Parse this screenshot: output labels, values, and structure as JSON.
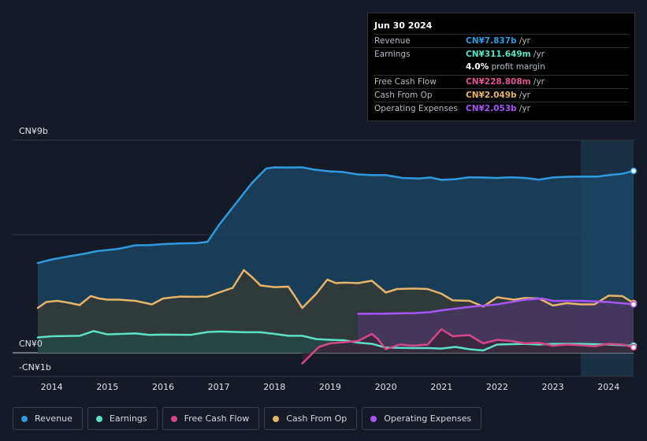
{
  "tooltip": {
    "date": "Jun 30 2024",
    "rows": [
      {
        "label": "Revenue",
        "value": "CN¥7.837b",
        "unit": " /yr",
        "color": "#2f9ae0"
      },
      {
        "label": "Earnings",
        "value": "CN¥311.649m",
        "unit": " /yr",
        "color": "#5ce0c6"
      },
      {
        "label": "",
        "value": "4.0%",
        "unit": " profit margin",
        "color": "#ffffff"
      },
      {
        "label": "Free Cash Flow",
        "value": "CN¥228.808m",
        "unit": " /yr",
        "color": "#e0558f"
      },
      {
        "label": "Cash From Op",
        "value": "CN¥2.049b",
        "unit": " /yr",
        "color": "#e8b36a"
      },
      {
        "label": "Operating Expenses",
        "value": "CN¥2.053b",
        "unit": " /yr",
        "color": "#a855f7"
      }
    ]
  },
  "legend": [
    {
      "label": "Revenue",
      "color": "#2f9ae0"
    },
    {
      "label": "Earnings",
      "color": "#5ce0c6"
    },
    {
      "label": "Free Cash Flow",
      "color": "#d6468a"
    },
    {
      "label": "Cash From Op",
      "color": "#e8b36a"
    },
    {
      "label": "Operating Expenses",
      "color": "#a855f7"
    }
  ],
  "chart_data": {
    "type": "area",
    "title": "",
    "xlabel": "",
    "ylabel": "",
    "ylim": [
      -1,
      9
    ],
    "y_ticks": [
      {
        "value": 9,
        "label": "CN¥9b"
      },
      {
        "value": 0,
        "label": "CN¥0"
      },
      {
        "value": -1,
        "label": "-CN¥1b"
      }
    ],
    "x_ticks": [
      2014,
      2015,
      2016,
      2017,
      2018,
      2019,
      2020,
      2021,
      2022,
      2023,
      2024
    ],
    "xlim": [
      2013.7,
      2024.5
    ],
    "gridlines": [
      9,
      5,
      0
    ],
    "highlight_start": 2023.5,
    "series": [
      {
        "name": "Revenue",
        "color": "#2f9ae0",
        "fill": "#1b4868",
        "points": [
          [
            2013.75,
            3.8
          ],
          [
            2014.0,
            3.95
          ],
          [
            2014.3,
            4.08
          ],
          [
            2014.6,
            4.2
          ],
          [
            2014.8,
            4.3
          ],
          [
            2015.2,
            4.4
          ],
          [
            2015.5,
            4.55
          ],
          [
            2015.75,
            4.56
          ],
          [
            2016.0,
            4.6
          ],
          [
            2016.3,
            4.63
          ],
          [
            2016.6,
            4.64
          ],
          [
            2016.8,
            4.7
          ],
          [
            2017.0,
            5.4
          ],
          [
            2017.3,
            6.3
          ],
          [
            2017.6,
            7.2
          ],
          [
            2017.85,
            7.8
          ],
          [
            2018.0,
            7.85
          ],
          [
            2018.2,
            7.84
          ],
          [
            2018.5,
            7.85
          ],
          [
            2018.7,
            7.76
          ],
          [
            2019.0,
            7.68
          ],
          [
            2019.2,
            7.66
          ],
          [
            2019.5,
            7.55
          ],
          [
            2019.75,
            7.52
          ],
          [
            2020.0,
            7.52
          ],
          [
            2020.3,
            7.4
          ],
          [
            2020.6,
            7.38
          ],
          [
            2020.8,
            7.42
          ],
          [
            2021.0,
            7.32
          ],
          [
            2021.25,
            7.35
          ],
          [
            2021.5,
            7.43
          ],
          [
            2021.75,
            7.42
          ],
          [
            2022.0,
            7.4
          ],
          [
            2022.25,
            7.43
          ],
          [
            2022.5,
            7.4
          ],
          [
            2022.75,
            7.33
          ],
          [
            2023.0,
            7.42
          ],
          [
            2023.25,
            7.45
          ],
          [
            2023.5,
            7.46
          ],
          [
            2023.8,
            7.46
          ],
          [
            2024.0,
            7.52
          ],
          [
            2024.25,
            7.58
          ],
          [
            2024.45,
            7.7
          ]
        ]
      },
      {
        "name": "Cash From Op",
        "color": "#e8b36a",
        "fill": "#3a3a32",
        "points": [
          [
            2013.75,
            1.9
          ],
          [
            2013.9,
            2.15
          ],
          [
            2014.1,
            2.2
          ],
          [
            2014.3,
            2.12
          ],
          [
            2014.5,
            2.02
          ],
          [
            2014.7,
            2.4
          ],
          [
            2014.85,
            2.3
          ],
          [
            2015.0,
            2.25
          ],
          [
            2015.2,
            2.25
          ],
          [
            2015.5,
            2.2
          ],
          [
            2015.8,
            2.05
          ],
          [
            2016.0,
            2.3
          ],
          [
            2016.3,
            2.38
          ],
          [
            2016.6,
            2.37
          ],
          [
            2016.8,
            2.38
          ],
          [
            2017.0,
            2.55
          ],
          [
            2017.25,
            2.75
          ],
          [
            2017.45,
            3.5
          ],
          [
            2017.6,
            3.2
          ],
          [
            2017.75,
            2.85
          ],
          [
            2018.0,
            2.78
          ],
          [
            2018.25,
            2.8
          ],
          [
            2018.35,
            2.45
          ],
          [
            2018.5,
            1.9
          ],
          [
            2018.75,
            2.5
          ],
          [
            2018.95,
            3.1
          ],
          [
            2019.1,
            2.95
          ],
          [
            2019.25,
            2.97
          ],
          [
            2019.5,
            2.95
          ],
          [
            2019.75,
            3.05
          ],
          [
            2020.0,
            2.55
          ],
          [
            2020.2,
            2.7
          ],
          [
            2020.5,
            2.72
          ],
          [
            2020.75,
            2.7
          ],
          [
            2021.0,
            2.5
          ],
          [
            2021.2,
            2.22
          ],
          [
            2021.5,
            2.2
          ],
          [
            2021.75,
            1.96
          ],
          [
            2022.0,
            2.35
          ],
          [
            2022.3,
            2.25
          ],
          [
            2022.5,
            2.32
          ],
          [
            2022.75,
            2.3
          ],
          [
            2023.0,
            2.0
          ],
          [
            2023.25,
            2.1
          ],
          [
            2023.5,
            2.05
          ],
          [
            2023.75,
            2.05
          ],
          [
            2024.0,
            2.42
          ],
          [
            2024.25,
            2.4
          ],
          [
            2024.45,
            2.1
          ]
        ]
      },
      {
        "name": "Operating Expenses",
        "color": "#a855f7",
        "fill": "#4a3768",
        "points": [
          [
            2019.5,
            1.65
          ],
          [
            2020.0,
            1.66
          ],
          [
            2020.5,
            1.68
          ],
          [
            2020.8,
            1.72
          ],
          [
            2021.0,
            1.8
          ],
          [
            2021.5,
            1.94
          ],
          [
            2022.0,
            2.05
          ],
          [
            2022.25,
            2.15
          ],
          [
            2022.5,
            2.25
          ],
          [
            2022.8,
            2.3
          ],
          [
            2023.0,
            2.2
          ],
          [
            2023.5,
            2.2
          ],
          [
            2024.0,
            2.15
          ],
          [
            2024.45,
            2.05
          ]
        ]
      },
      {
        "name": "Earnings",
        "color": "#5ce0c6",
        "fill": "#234a44",
        "points": [
          [
            2013.75,
            0.65
          ],
          [
            2014.0,
            0.7
          ],
          [
            2014.5,
            0.72
          ],
          [
            2014.75,
            0.92
          ],
          [
            2015.0,
            0.78
          ],
          [
            2015.5,
            0.82
          ],
          [
            2015.75,
            0.76
          ],
          [
            2016.0,
            0.77
          ],
          [
            2016.5,
            0.76
          ],
          [
            2016.8,
            0.88
          ],
          [
            2017.0,
            0.9
          ],
          [
            2017.5,
            0.87
          ],
          [
            2017.75,
            0.87
          ],
          [
            2018.0,
            0.8
          ],
          [
            2018.25,
            0.72
          ],
          [
            2018.5,
            0.72
          ],
          [
            2018.75,
            0.58
          ],
          [
            2019.0,
            0.55
          ],
          [
            2019.25,
            0.53
          ],
          [
            2019.5,
            0.43
          ],
          [
            2019.75,
            0.38
          ],
          [
            2020.0,
            0.22
          ],
          [
            2020.5,
            0.2
          ],
          [
            2020.75,
            0.2
          ],
          [
            2021.0,
            0.18
          ],
          [
            2021.25,
            0.25
          ],
          [
            2021.5,
            0.15
          ],
          [
            2021.75,
            0.1
          ],
          [
            2022.0,
            0.35
          ],
          [
            2022.5,
            0.38
          ],
          [
            2022.75,
            0.35
          ],
          [
            2023.0,
            0.38
          ],
          [
            2023.5,
            0.38
          ],
          [
            2024.0,
            0.35
          ],
          [
            2024.45,
            0.3
          ]
        ]
      },
      {
        "name": "Free Cash Flow",
        "color": "#d6468a",
        "fill": "#3a2438",
        "points": [
          [
            2018.5,
            -0.45
          ],
          [
            2018.65,
            -0.1
          ],
          [
            2018.8,
            0.25
          ],
          [
            2019.0,
            0.4
          ],
          [
            2019.25,
            0.45
          ],
          [
            2019.5,
            0.5
          ],
          [
            2019.75,
            0.8
          ],
          [
            2019.85,
            0.6
          ],
          [
            2020.0,
            0.15
          ],
          [
            2020.25,
            0.35
          ],
          [
            2020.5,
            0.3
          ],
          [
            2020.75,
            0.35
          ],
          [
            2021.0,
            1.0
          ],
          [
            2021.2,
            0.7
          ],
          [
            2021.5,
            0.75
          ],
          [
            2021.75,
            0.4
          ],
          [
            2022.0,
            0.55
          ],
          [
            2022.25,
            0.5
          ],
          [
            2022.5,
            0.4
          ],
          [
            2022.75,
            0.42
          ],
          [
            2023.0,
            0.3
          ],
          [
            2023.25,
            0.35
          ],
          [
            2023.5,
            0.32
          ],
          [
            2023.75,
            0.28
          ],
          [
            2024.0,
            0.38
          ],
          [
            2024.25,
            0.35
          ],
          [
            2024.45,
            0.23
          ]
        ]
      }
    ]
  }
}
